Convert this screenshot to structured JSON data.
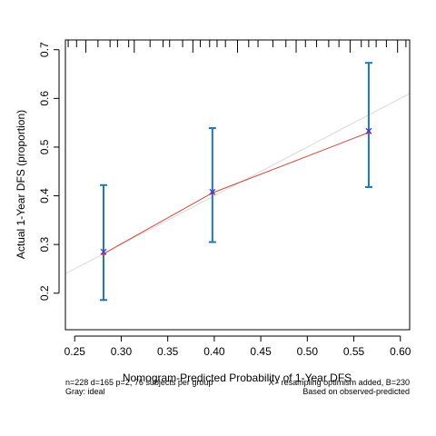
{
  "chart_data": {
    "type": "line",
    "xlabel": "Nomogram-Predicted Probability of 1-Year DFS",
    "ylabel": "Actual 1-Year DFS (proportion)",
    "xlim": [
      0.24,
      0.61
    ],
    "ylim": [
      0.125,
      0.72
    ],
    "x_ticks": [
      0.25,
      0.3,
      0.35,
      0.4,
      0.45,
      0.5,
      0.55,
      0.6
    ],
    "x_tick_labels": [
      "0.25",
      "0.30",
      "0.35",
      "0.40",
      "0.45",
      "0.50",
      "0.55",
      "0.60"
    ],
    "y_ticks": [
      0.2,
      0.3,
      0.4,
      0.5,
      0.6,
      0.7
    ],
    "y_tick_labels": [
      "0.2",
      "0.3",
      "0.4",
      "0.5",
      "0.6",
      "0.7"
    ],
    "grid": false,
    "ideal_line": {
      "from": [
        0.24,
        0.24
      ],
      "to": [
        0.61,
        0.61
      ],
      "color": "#d9d9d9"
    },
    "series": [
      {
        "name": "observed",
        "color": "#cc4a3c",
        "error_color": "#1f77b4",
        "points": [
          {
            "x": 0.281,
            "y": 0.281,
            "lower": 0.186,
            "upper": 0.422
          },
          {
            "x": 0.398,
            "y": 0.406,
            "lower": 0.305,
            "upper": 0.539
          },
          {
            "x": 0.566,
            "y": 0.53,
            "lower": 0.418,
            "upper": 0.673
          }
        ]
      }
    ],
    "bias_corrected": {
      "marker": "x",
      "color": "#3a3adf",
      "points": [
        {
          "x": 0.281,
          "y": 0.285
        },
        {
          "x": 0.398,
          "y": 0.408
        },
        {
          "x": 0.566,
          "y": 0.533
        }
      ]
    },
    "rug_x": [
      0.243,
      0.252,
      0.262,
      0.275,
      0.288,
      0.296,
      0.308,
      0.314,
      0.331,
      0.345,
      0.352,
      0.366,
      0.377,
      0.385,
      0.395,
      0.403,
      0.412,
      0.425,
      0.437,
      0.447,
      0.463,
      0.477,
      0.488,
      0.498,
      0.51,
      0.523,
      0.534,
      0.546,
      0.558,
      0.566,
      0.574,
      0.585,
      0.597,
      0.606
    ]
  },
  "footnotes": {
    "left_line1": "n=228 d=165 p=2, 76 subjects per group",
    "left_line2": "Gray: ideal",
    "right_line1": "X - resampling optimism added, B=230",
    "right_line2": "Based on observed-predicted"
  }
}
